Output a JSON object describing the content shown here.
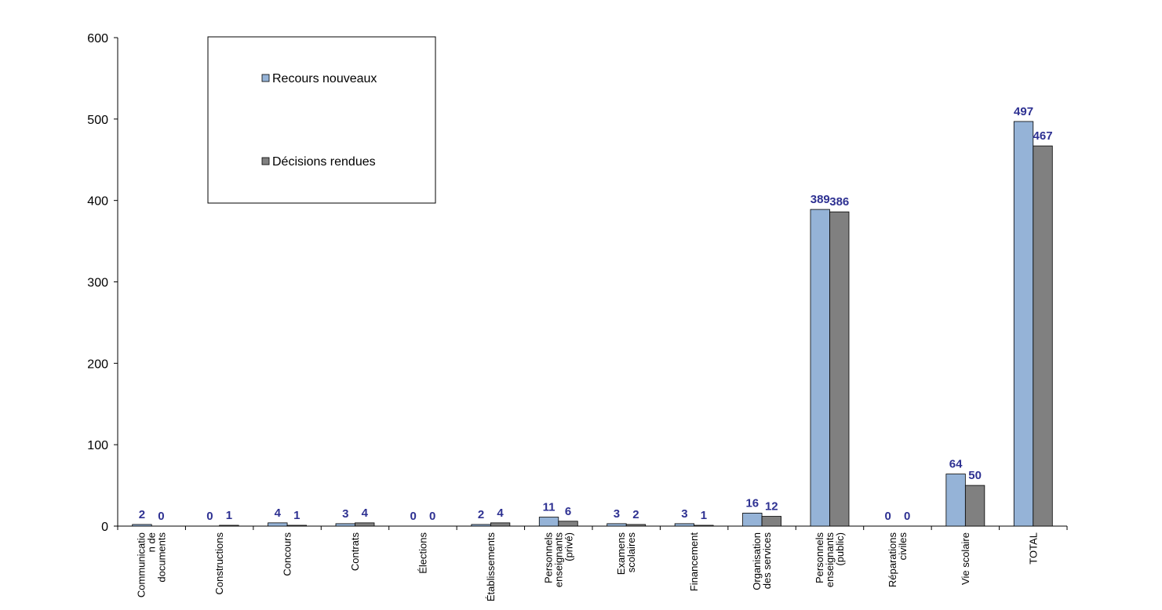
{
  "chart_data": {
    "type": "bar",
    "title": "",
    "xlabel": "",
    "ylabel": "",
    "ylim": [
      0,
      600
    ],
    "yticks": [
      0,
      100,
      200,
      300,
      400,
      500,
      600
    ],
    "grid": false,
    "legend_position": "top-left",
    "categories": [
      [
        "Communicatio",
        "n de",
        "documents"
      ],
      [
        "Constructions"
      ],
      [
        "Concours"
      ],
      [
        "Contrats"
      ],
      [
        "Élections"
      ],
      [
        "Établissements"
      ],
      [
        "Personnels",
        "enseignants",
        "(privé)"
      ],
      [
        "Examens",
        "scolaires"
      ],
      [
        "Financement"
      ],
      [
        "Organisation",
        "des services"
      ],
      [
        "Personnels",
        "enseignants",
        "(public)"
      ],
      [
        "Réparations",
        "civiles"
      ],
      [
        "Vie scolaire"
      ],
      [
        "TOTAL"
      ]
    ],
    "series": [
      {
        "name": "Recours nouveaux",
        "color": "#95b3d7",
        "values": [
          2,
          0,
          4,
          3,
          0,
          2,
          11,
          3,
          3,
          16,
          389,
          0,
          64,
          497
        ]
      },
      {
        "name": "Décisions rendues",
        "color": "#808080",
        "values": [
          0,
          1,
          1,
          4,
          0,
          4,
          6,
          2,
          1,
          12,
          386,
          0,
          50,
          467
        ]
      }
    ]
  }
}
